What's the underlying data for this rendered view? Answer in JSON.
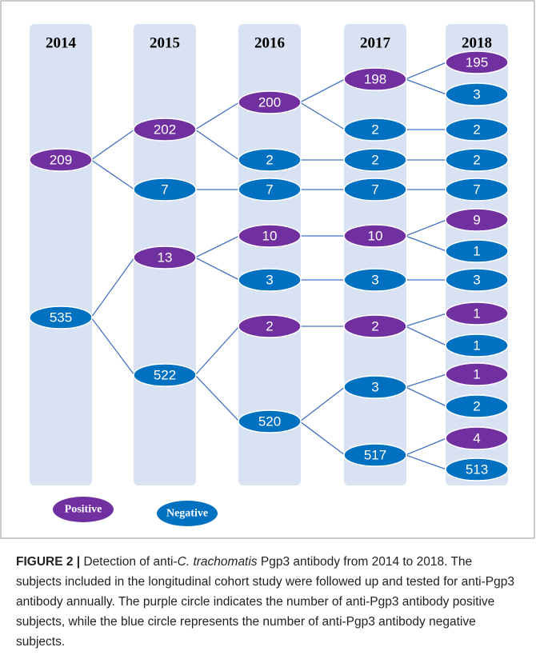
{
  "years": [
    "2014",
    "2015",
    "2016",
    "2017",
    "2018"
  ],
  "tree": [
    {
      "label": "209",
      "color": "#7030a0",
      "children": [
        {
          "label": "202",
          "color": "#7030a0",
          "children": [
            {
              "label": "200",
              "color": "#7030a0",
              "children": [
                {
                  "label": "198",
                  "color": "#7030a0",
                  "children": [
                    {
                      "label": "195",
                      "color": "#7030a0",
                      "children": []
                    },
                    {
                      "label": "3",
                      "color": "#0070c0",
                      "children": []
                    }
                  ]
                },
                {
                  "label": "2",
                  "color": "#0070c0",
                  "children": [
                    {
                      "label": "2",
                      "color": "#0070c0",
                      "children": []
                    }
                  ]
                }
              ]
            },
            {
              "label": "2",
              "color": "#0070c0",
              "children": [
                {
                  "label": "2",
                  "color": "#0070c0",
                  "children": [
                    {
                      "label": "2",
                      "color": "#0070c0",
                      "children": []
                    }
                  ]
                }
              ]
            }
          ]
        },
        {
          "label": "7",
          "color": "#0070c0",
          "children": [
            {
              "label": "7",
              "color": "#0070c0",
              "children": [
                {
                  "label": "7",
                  "color": "#0070c0",
                  "children": [
                    {
                      "label": "7",
                      "color": "#0070c0",
                      "children": []
                    }
                  ]
                }
              ]
            }
          ]
        }
      ]
    },
    {
      "label": "535",
      "color": "#0070c0",
      "children": [
        {
          "label": "13",
          "color": "#7030a0",
          "children": [
            {
              "label": "10",
              "color": "#7030a0",
              "children": [
                {
                  "label": "10",
                  "color": "#7030a0",
                  "children": [
                    {
                      "label": "9",
                      "color": "#7030a0",
                      "children": []
                    },
                    {
                      "label": "1",
                      "color": "#0070c0",
                      "children": []
                    }
                  ]
                }
              ]
            },
            {
              "label": "3",
              "color": "#0070c0",
              "children": [
                {
                  "label": "3",
                  "color": "#0070c0",
                  "children": [
                    {
                      "label": "3",
                      "color": "#0070c0",
                      "children": []
                    }
                  ]
                }
              ]
            }
          ]
        },
        {
          "label": "522",
          "color": "#0070c0",
          "children": [
            {
              "label": "2",
              "color": "#7030a0",
              "children": [
                {
                  "label": "2",
                  "color": "#7030a0",
                  "children": [
                    {
                      "label": "1",
                      "color": "#7030a0",
                      "children": []
                    },
                    {
                      "label": "1",
                      "color": "#0070c0",
                      "children": []
                    }
                  ]
                }
              ]
            },
            {
              "label": "520",
              "color": "#0070c0",
              "children": [
                {
                  "label": "3",
                  "color": "#0070c0",
                  "children": [
                    {
                      "label": "1",
                      "color": "#7030a0",
                      "children": []
                    },
                    {
                      "label": "2",
                      "color": "#0070c0",
                      "children": []
                    }
                  ]
                },
                {
                  "label": "517",
                  "color": "#0070c0",
                  "children": [
                    {
                      "label": "4",
                      "color": "#7030a0",
                      "children": []
                    },
                    {
                      "label": "513",
                      "color": "#0070c0",
                      "children": []
                    }
                  ]
                }
              ]
            }
          ]
        }
      ]
    }
  ],
  "legend": [
    {
      "label": "Positive",
      "color": "#7030a0"
    },
    {
      "label": "Negative",
      "color": "#0070c0"
    }
  ],
  "caption": {
    "label": "FIGURE 2 |",
    "parts": [
      "Detection of anti-",
      "C. trachomatis",
      " Pgp3 antibody from 2014 to 2018. The subjects included in the longitudinal cohort study were followed up and tested for anti-Pgp3 antibody annually. The purple circle indicates the number of anti-Pgp3 antibody positive subjects, while the blue circle represents the number of anti-Pgp3 antibody negative subjects."
    ]
  }
}
